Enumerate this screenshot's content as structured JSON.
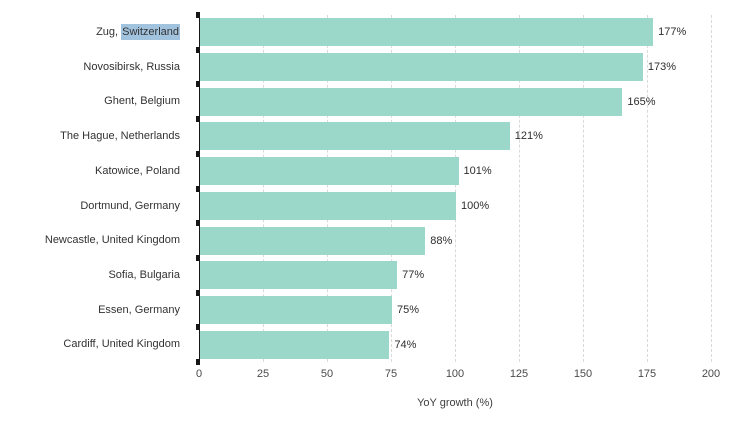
{
  "chart_data": {
    "type": "bar",
    "orientation": "horizontal",
    "title": "",
    "xlabel": "YoY growth (%)",
    "ylabel": "",
    "xlim": [
      0,
      200
    ],
    "xticks": [
      "0",
      "25",
      "50",
      "75",
      "100",
      "125",
      "150",
      "175",
      "200"
    ],
    "grid": "vertical dashed gridlines at each x tick",
    "legend": "none",
    "categories": [
      "Zug, Switzerland",
      "Novosibirsk, Russia",
      "Ghent, Belgium",
      "The Hague, Netherlands",
      "Katowice, Poland",
      "Dortmund, Germany",
      "Newcastle, United Kingdom",
      "Sofia, Bulgaria",
      "Essen, Germany",
      "Cardiff, United Kingdom"
    ],
    "values": [
      177,
      173,
      165,
      121,
      101,
      100,
      88,
      77,
      75,
      74
    ],
    "bar_labels": [
      "177%",
      "173%",
      "165%",
      "121%",
      "101%",
      "100%",
      "88%",
      "77%",
      "75%",
      "74%"
    ],
    "selection": {
      "category_index": 0,
      "prefix_text": "Zug, ",
      "selected_text": "Switzerland"
    },
    "colors": {
      "bar": "#9bd8ca",
      "selection_highlight": "#a2c3de",
      "axis_line": "#161616",
      "gridline": "#d9d9d9",
      "category_text": "#323232",
      "value_text": "#2d2d2d",
      "tick_text": "#4a4a4a"
    }
  }
}
